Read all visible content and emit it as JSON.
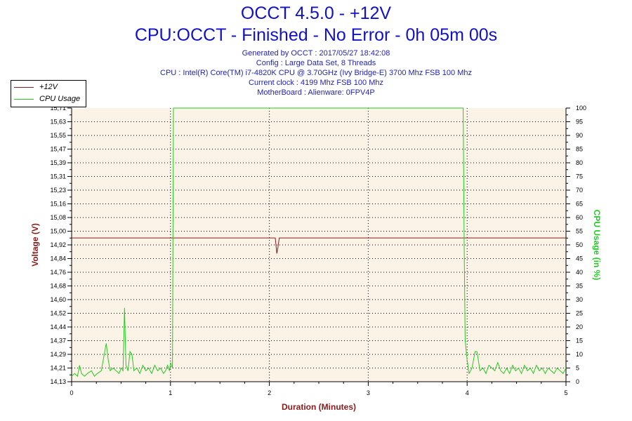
{
  "header": {
    "title": "OCCT 4.5.0 - +12V",
    "subtitle": "CPU:OCCT - Finished - No Error - 0h 05m 00s",
    "info_lines": [
      "Generated by OCCT : 2017/05/27 18:42:08",
      "Config : Large Data Set, 8 Threads",
      "CPU : Intel(R) Core(TM) i7-4820K CPU @ 3.70GHz (Ivy Bridge-E) 3700 Mhz FSB 100 Mhz",
      "Current clock : 4199 Mhz FSB 100 Mhz",
      "MotherBoard : Alienware: 0FPV4P"
    ]
  },
  "legend": {
    "items": [
      {
        "label": "+12V",
        "color": "#8b1a1a"
      },
      {
        "label": "CPU Usage",
        "color": "#22cc22"
      }
    ]
  },
  "chart_data": {
    "type": "line",
    "xlabel": "Duration (Minutes)",
    "ylabel_left": "Voltage (V)",
    "ylabel_right": "CPU Usage (in %)",
    "xlim": [
      0,
      5
    ],
    "ylim_left": [
      14.13,
      15.71
    ],
    "ylim_right": [
      0,
      100
    ],
    "x_ticks": [
      "0",
      "1",
      "2",
      "3",
      "4",
      "5"
    ],
    "y_left_ticks": [
      "14,13",
      "14,21",
      "14,29",
      "14,37",
      "14,44",
      "14,52",
      "14,60",
      "14,68",
      "14,76",
      "14,84",
      "14,92",
      "15,00",
      "15,08",
      "15,16",
      "15,23",
      "15,31",
      "15,39",
      "15,47",
      "15,55",
      "15,63",
      "15,71"
    ],
    "y_right_ticks": [
      "0",
      "5",
      "10",
      "15",
      "20",
      "25",
      "30",
      "35",
      "40",
      "45",
      "50",
      "55",
      "60",
      "65",
      "70",
      "75",
      "80",
      "85",
      "90",
      "95",
      "100"
    ],
    "grid": true,
    "legend_position": "top-left",
    "colors": {
      "voltage": "#8b1a1a",
      "cpu": "#22cc22",
      "plot_bg": "#fbf3e6"
    },
    "series": [
      {
        "name": "+12V",
        "axis": "left",
        "x": [
          0,
          2.06,
          2.075,
          2.085,
          2.1,
          5
        ],
        "values": [
          14.96,
          14.96,
          14.87,
          14.9,
          14.96,
          14.96
        ]
      },
      {
        "name": "CPU Usage",
        "axis": "right",
        "x": [
          0,
          0.03,
          0.06,
          0.08,
          0.1,
          0.13,
          0.16,
          0.2,
          0.23,
          0.26,
          0.3,
          0.33,
          0.35,
          0.37,
          0.39,
          0.42,
          0.45,
          0.48,
          0.5,
          0.52,
          0.535,
          0.55,
          0.57,
          0.59,
          0.61,
          0.63,
          0.66,
          0.69,
          0.72,
          0.75,
          0.78,
          0.81,
          0.84,
          0.87,
          0.9,
          0.93,
          0.95,
          0.97,
          0.99,
          1.0,
          1.02,
          1.03,
          3.96,
          3.97,
          3.98,
          4.0,
          4.02,
          4.05,
          4.08,
          4.1,
          4.13,
          4.16,
          4.19,
          4.22,
          4.25,
          4.28,
          4.31,
          4.34,
          4.37,
          4.4,
          4.43,
          4.46,
          4.49,
          4.52,
          4.55,
          4.58,
          4.61,
          4.64,
          4.67,
          4.7,
          4.73,
          4.76,
          4.79,
          4.82,
          4.85,
          4.88,
          4.91,
          4.94,
          4.97,
          5.0
        ],
        "values": [
          2,
          3,
          2,
          6,
          3,
          2,
          3,
          4,
          2,
          3,
          4,
          10,
          14,
          8,
          4,
          5,
          4,
          3,
          5,
          4,
          27,
          6,
          4,
          11,
          10,
          4,
          5,
          3,
          6,
          4,
          5,
          3,
          6,
          4,
          5,
          3,
          4,
          6,
          4,
          7,
          5,
          100,
          100,
          50,
          15,
          8,
          3,
          5,
          11,
          11,
          4,
          5,
          3,
          6,
          5,
          4,
          7,
          4,
          3,
          5,
          3,
          6,
          4,
          5,
          3,
          6,
          4,
          5,
          3,
          6,
          4,
          5,
          3,
          5,
          4,
          3,
          5,
          4,
          3,
          5
        ]
      }
    ]
  }
}
